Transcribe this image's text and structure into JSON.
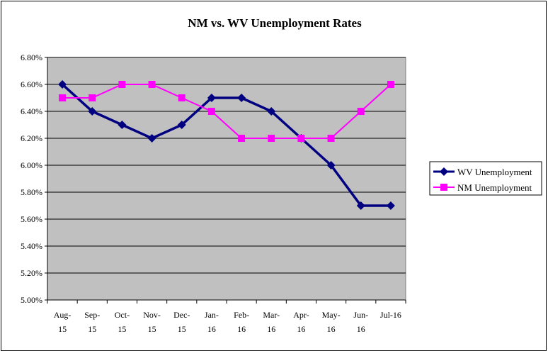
{
  "chart_data": {
    "type": "line",
    "title": "NM vs. WV Unemployment Rates",
    "xlabel": "",
    "ylabel": "",
    "categories": [
      "Aug-15",
      "Sep-15",
      "Oct-15",
      "Nov-15",
      "Dec-15",
      "Jan-16",
      "Feb-16",
      "Mar-16",
      "Apr-16",
      "May-16",
      "Jun-16",
      "Jul-16"
    ],
    "category_lines": [
      [
        "Aug-",
        "15"
      ],
      [
        "Sep-",
        "15"
      ],
      [
        "Oct-",
        "15"
      ],
      [
        "Nov-",
        "15"
      ],
      [
        "Dec-",
        "15"
      ],
      [
        "Jan-",
        "16"
      ],
      [
        "Feb-",
        "16"
      ],
      [
        "Mar-",
        "16"
      ],
      [
        "Apr-",
        "16"
      ],
      [
        "May-",
        "16"
      ],
      [
        "Jun-",
        "16"
      ],
      [
        "Jul-16",
        ""
      ]
    ],
    "ylim": [
      5.0,
      6.8
    ],
    "yticks": [
      "5.00%",
      "5.20%",
      "5.40%",
      "5.60%",
      "5.80%",
      "6.00%",
      "6.20%",
      "6.40%",
      "6.60%",
      "6.80%"
    ],
    "grid": true,
    "legend_position": "right",
    "series": [
      {
        "name": "WV Unemployment",
        "color": "#000080",
        "marker": "diamond",
        "values": [
          6.6,
          6.4,
          6.3,
          6.2,
          6.3,
          6.5,
          6.5,
          6.4,
          6.2,
          6.0,
          5.7,
          5.7
        ]
      },
      {
        "name": "NM Unemployment",
        "color": "#FF00FF",
        "marker": "square",
        "values": [
          6.5,
          6.5,
          6.6,
          6.6,
          6.5,
          6.4,
          6.2,
          6.2,
          6.2,
          6.2,
          6.4,
          6.6
        ]
      }
    ]
  }
}
